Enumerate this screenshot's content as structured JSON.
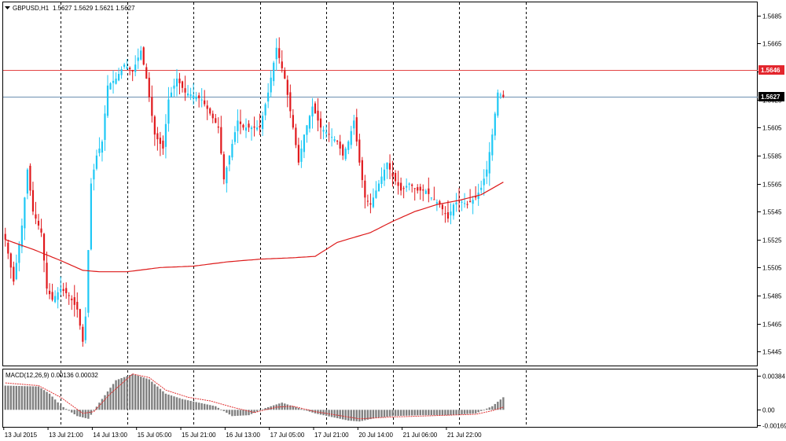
{
  "header": {
    "symbol_label": "GBPUSD,H1",
    "ohlc_label": "1.5627 1.5629 1.5621 1.5627",
    "menu_icon": "triangle-down-icon"
  },
  "chart_data": {
    "type": "candlestick",
    "symbol": "GBPUSD",
    "timeframe": "H1",
    "colors": {
      "bull": "#1ec8f5",
      "bear": "#e0191d",
      "ma": "#dd1a1a",
      "hline": "#e34545",
      "cursor_line": "#6b8fb0",
      "macd_hist": "#808080",
      "macd_signal": "#e03030",
      "grid": "#000000"
    },
    "y_axis": {
      "min": 1.5435,
      "max": 1.5695,
      "ticks": [
        "1.5685",
        "1.5665",
        "1.5645",
        "1.5625",
        "1.5605",
        "1.5585",
        "1.5565",
        "1.5545",
        "1.5525",
        "1.5505",
        "1.5485",
        "1.5465",
        "1.5445"
      ]
    },
    "x_labels": [
      "13 Jul 2015",
      "13 Jul 21:00",
      "14 Jul 13:00",
      "15 Jul 05:00",
      "15 Jul 21:00",
      "16 Jul 13:00",
      "17 Jul 05:00",
      "17 Jul 21:00",
      "20 Jul 14:00",
      "21 Jul 06:00",
      "21 Jul 22:00"
    ],
    "x_label_bar_index": [
      0,
      16,
      32,
      48,
      64,
      80,
      96,
      112,
      128,
      144,
      160
    ],
    "grid_bar_index": [
      20,
      44,
      68,
      92,
      116,
      140,
      164,
      188
    ],
    "horizontal_lines": [
      {
        "price": 1.5646,
        "label": "1.5646",
        "kind": "level"
      },
      {
        "price": 1.5627,
        "label": "1.5627",
        "kind": "current"
      }
    ],
    "ohlc_anchors": [
      [
        0,
        1.5525
      ],
      [
        3,
        1.5495
      ],
      [
        6,
        1.5535
      ],
      [
        8,
        1.5575
      ],
      [
        10,
        1.5545
      ],
      [
        13,
        1.553
      ],
      [
        15,
        1.549
      ],
      [
        17,
        1.5482
      ],
      [
        20,
        1.549
      ],
      [
        23,
        1.5485
      ],
      [
        26,
        1.5475
      ],
      [
        28,
        1.5452
      ],
      [
        29,
        1.547
      ],
      [
        31,
        1.5565
      ],
      [
        33,
        1.5585
      ],
      [
        35,
        1.5595
      ],
      [
        37,
        1.5635
      ],
      [
        40,
        1.564
      ],
      [
        43,
        1.565
      ],
      [
        46,
        1.5645
      ],
      [
        49,
        1.566
      ],
      [
        51,
        1.564
      ],
      [
        54,
        1.56
      ],
      [
        57,
        1.559
      ],
      [
        59,
        1.5625
      ],
      [
        62,
        1.564
      ],
      [
        65,
        1.563
      ],
      [
        68,
        1.5628
      ],
      [
        71,
        1.5625
      ],
      [
        74,
        1.5615
      ],
      [
        77,
        1.5605
      ],
      [
        79,
        1.5568
      ],
      [
        81,
        1.5585
      ],
      [
        84,
        1.561
      ],
      [
        86,
        1.5605
      ],
      [
        89,
        1.5605
      ],
      [
        92,
        1.5605
      ],
      [
        95,
        1.563
      ],
      [
        98,
        1.5662
      ],
      [
        101,
        1.564
      ],
      [
        104,
        1.5605
      ],
      [
        106,
        1.558
      ],
      [
        108,
        1.56
      ],
      [
        111,
        1.562
      ],
      [
        114,
        1.5605
      ],
      [
        117,
        1.56
      ],
      [
        120,
        1.5595
      ],
      [
        122,
        1.5585
      ],
      [
        124,
        1.5595
      ],
      [
        126,
        1.561
      ],
      [
        128,
        1.558
      ],
      [
        130,
        1.5555
      ],
      [
        132,
        1.555
      ],
      [
        134,
        1.556
      ],
      [
        136,
        1.557
      ],
      [
        138,
        1.558
      ],
      [
        140,
        1.557
      ],
      [
        143,
        1.556
      ],
      [
        146,
        1.5565
      ],
      [
        149,
        1.556
      ],
      [
        152,
        1.556
      ],
      [
        154,
        1.5555
      ],
      [
        157,
        1.555
      ],
      [
        160,
        1.554
      ],
      [
        162,
        1.555
      ],
      [
        164,
        1.5553
      ],
      [
        167,
        1.555
      ],
      [
        170,
        1.5555
      ],
      [
        172,
        1.5562
      ],
      [
        174,
        1.5575
      ],
      [
        176,
        1.56
      ],
      [
        178,
        1.563
      ],
      [
        180,
        1.5627
      ]
    ],
    "ma_anchors": [
      [
        0,
        1.5525
      ],
      [
        10,
        1.5518
      ],
      [
        20,
        1.551
      ],
      [
        28,
        1.5503
      ],
      [
        34,
        1.5502
      ],
      [
        44,
        1.5502
      ],
      [
        56,
        1.5505
      ],
      [
        68,
        1.5506
      ],
      [
        80,
        1.5509
      ],
      [
        92,
        1.5511
      ],
      [
        104,
        1.5512
      ],
      [
        112,
        1.5513
      ],
      [
        120,
        1.5523
      ],
      [
        132,
        1.553
      ],
      [
        140,
        1.5538
      ],
      [
        148,
        1.5545
      ],
      [
        156,
        1.555
      ],
      [
        164,
        1.5553
      ],
      [
        172,
        1.5557
      ],
      [
        180,
        1.5566
      ]
    ],
    "macd": {
      "label": "MACD(12,26,9) 0.00136 0.00032",
      "params": [
        12,
        26,
        9
      ],
      "value": 0.00136,
      "signal": 0.00032,
      "y_min": -0.0019,
      "y_max": 0.0045,
      "ticks": [
        "0.00384",
        "0.00",
        "-0.00169"
      ],
      "hist_anchors": [
        [
          0,
          0.0027
        ],
        [
          12,
          0.0026
        ],
        [
          16,
          0.0018
        ],
        [
          20,
          0.0005
        ],
        [
          26,
          -0.0007
        ],
        [
          30,
          -0.001
        ],
        [
          34,
          0.0008
        ],
        [
          40,
          0.0033
        ],
        [
          46,
          0.004
        ],
        [
          52,
          0.0034
        ],
        [
          58,
          0.0018
        ],
        [
          64,
          0.0012
        ],
        [
          70,
          0.0008
        ],
        [
          76,
          0.0004
        ],
        [
          82,
          -0.0007
        ],
        [
          88,
          -0.0006
        ],
        [
          94,
          0.0002
        ],
        [
          100,
          0.0008
        ],
        [
          106,
          0.0002
        ],
        [
          112,
          -0.0004
        ],
        [
          118,
          -0.0008
        ],
        [
          124,
          -0.0012
        ],
        [
          128,
          -0.0013
        ],
        [
          134,
          -0.0009
        ],
        [
          140,
          -0.0007
        ],
        [
          150,
          -0.0006
        ],
        [
          160,
          -0.0006
        ],
        [
          170,
          -0.0004
        ],
        [
          176,
          0.0004
        ],
        [
          180,
          0.0014
        ]
      ],
      "signal_anchors": [
        [
          0,
          0.003
        ],
        [
          12,
          0.0027
        ],
        [
          20,
          0.0014
        ],
        [
          28,
          -0.0004
        ],
        [
          32,
          -0.0002
        ],
        [
          38,
          0.0018
        ],
        [
          46,
          0.004
        ],
        [
          52,
          0.0036
        ],
        [
          58,
          0.0022
        ],
        [
          66,
          0.0014
        ],
        [
          74,
          0.001
        ],
        [
          82,
          0.0003
        ],
        [
          90,
          -0.0003
        ],
        [
          98,
          0.0003
        ],
        [
          104,
          0.0004
        ],
        [
          112,
          -0.0002
        ],
        [
          120,
          -0.0006
        ],
        [
          128,
          -0.001
        ],
        [
          134,
          -0.0009
        ],
        [
          140,
          -0.0008
        ],
        [
          150,
          -0.0007
        ],
        [
          160,
          -0.0006
        ],
        [
          170,
          -0.0005
        ],
        [
          176,
          -0.0001
        ],
        [
          180,
          0.0003
        ]
      ]
    }
  }
}
